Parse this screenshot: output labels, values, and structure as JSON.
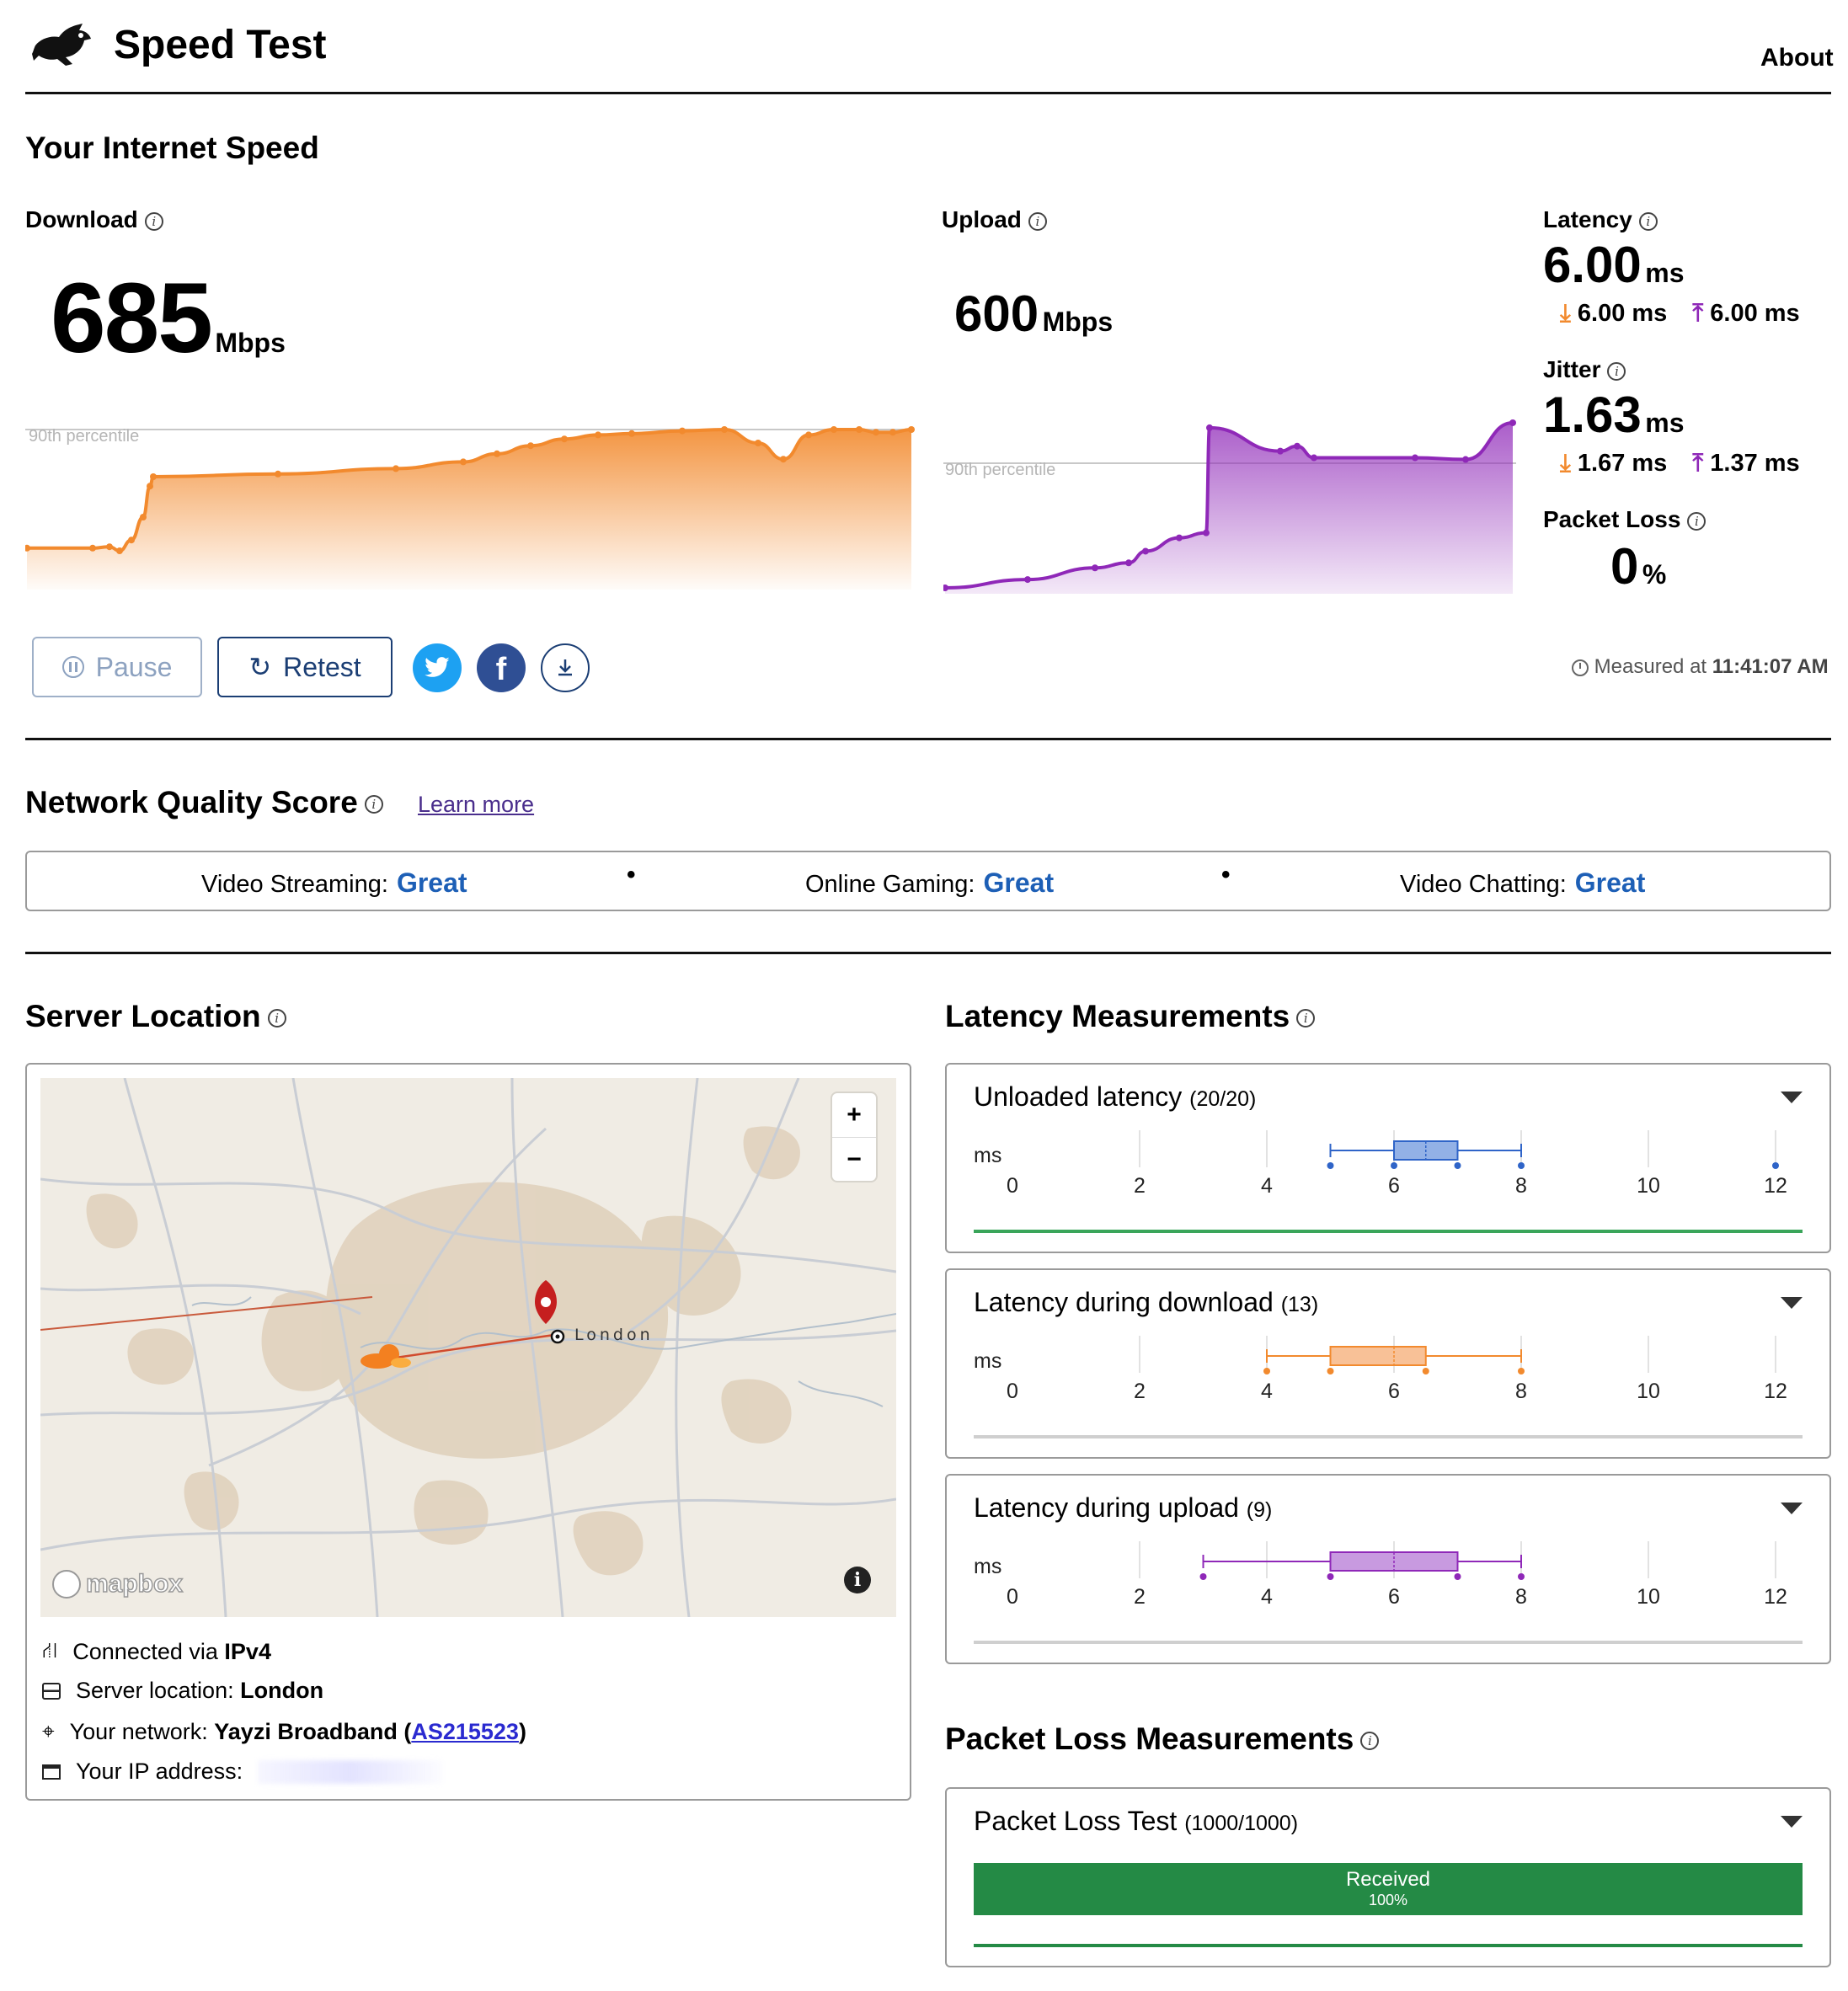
{
  "header": {
    "app_title": "Speed Test",
    "about_link": "About"
  },
  "speed": {
    "section_title": "Your Internet Speed",
    "download": {
      "label": "Download",
      "value": "685",
      "unit": "Mbps",
      "percentile_label": "90th percentile",
      "color": "#f28a2e"
    },
    "upload": {
      "label": "Upload",
      "value": "600",
      "unit": "Mbps",
      "percentile_label": "90th percentile",
      "color": "#8f28b8"
    },
    "latency": {
      "label": "Latency",
      "value": "6.00",
      "unit": "ms",
      "down": "6.00 ms",
      "up": "6.00 ms"
    },
    "jitter": {
      "label": "Jitter",
      "value": "1.63",
      "unit": "ms",
      "down": "1.67 ms",
      "up": "1.37 ms"
    },
    "packet_loss": {
      "label": "Packet Loss",
      "value": "0",
      "unit": "%"
    },
    "measured_prefix": "Measured at",
    "measured_time": "11:41:07 AM"
  },
  "actions": {
    "pause_label": "Pause",
    "retest_label": "Retest",
    "twitter_icon": "twitter-icon",
    "facebook_icon": "facebook-icon",
    "download_icon": "download-icon"
  },
  "network_quality": {
    "title": "Network Quality Score",
    "learn_more": "Learn more",
    "items": [
      {
        "label": "Video Streaming:",
        "value": "Great"
      },
      {
        "label": "Online Gaming:",
        "value": "Great"
      },
      {
        "label": "Video Chatting:",
        "value": "Great"
      }
    ],
    "value_color": "#1d5fb6"
  },
  "server": {
    "title": "Server Location",
    "map_label": "London",
    "map_brand": "mapbox",
    "zoom_in": "+",
    "zoom_out": "−",
    "connected_prefix": "Connected via",
    "connected_value": "IPv4",
    "location_prefix": "Server location:",
    "location_value": "London",
    "network_prefix": "Your network:",
    "network_value": "Yayzi Broadband",
    "network_as": "AS215523",
    "ip_prefix": "Your IP address:"
  },
  "latency_measurements": {
    "title": "Latency Measurements",
    "unit_label": "ms",
    "ticks": [
      "0",
      "2",
      "4",
      "6",
      "8",
      "10",
      "12"
    ],
    "cards": [
      {
        "title": "Unloaded latency",
        "count": "(20/20)",
        "color": "#2f64c8",
        "fill": "#93b1e6",
        "min": 5.0,
        "q1": 6.0,
        "median": 6.5,
        "q3": 7.0,
        "max": 8.0,
        "outliers": [
          12.0
        ],
        "progress": 1.0
      },
      {
        "title": "Latency during download",
        "count": "(13)",
        "color": "#f28a2e",
        "fill": "#f8c197",
        "min": 4.0,
        "q1": 5.0,
        "median": 6.0,
        "q3": 6.5,
        "max": 8.0,
        "outliers": [],
        "progress": 0
      },
      {
        "title": "Latency during upload",
        "count": "(9)",
        "color": "#8f28b8",
        "fill": "#c89ae0",
        "min": 3.0,
        "q1": 5.0,
        "median": 6.0,
        "q3": 7.0,
        "max": 8.0,
        "outliers": [],
        "progress": 0
      }
    ]
  },
  "packet_loss": {
    "title": "Packet Loss Measurements",
    "card_title": "Packet Loss Test",
    "card_count": "(1000/1000)",
    "received_label": "Received",
    "received_pct": "100%",
    "received_fraction": 1.0,
    "bar_color": "#248a45"
  },
  "chart_data": [
    {
      "type": "area",
      "series": [
        {
          "name": "Download",
          "values": [
            0.12,
            0.12,
            0.13,
            0.1,
            0.18,
            0.35,
            0.58,
            0.65,
            0.67,
            0.71,
            0.76,
            0.82,
            0.88,
            0.93,
            0.96,
            0.97,
            0.99,
            1.0,
            0.9,
            0.78,
            0.96,
            1.0,
            1.0,
            0.98,
            0.98,
            1.0
          ]
        }
      ]
    },
    {
      "type": "area",
      "series": [
        {
          "name": "Upload",
          "values": [
            0.0,
            0.05,
            0.12,
            0.15,
            0.22,
            0.3,
            0.33,
            0.96,
            0.82,
            0.85,
            0.78,
            0.78,
            0.77,
            0.99
          ]
        }
      ]
    }
  ]
}
